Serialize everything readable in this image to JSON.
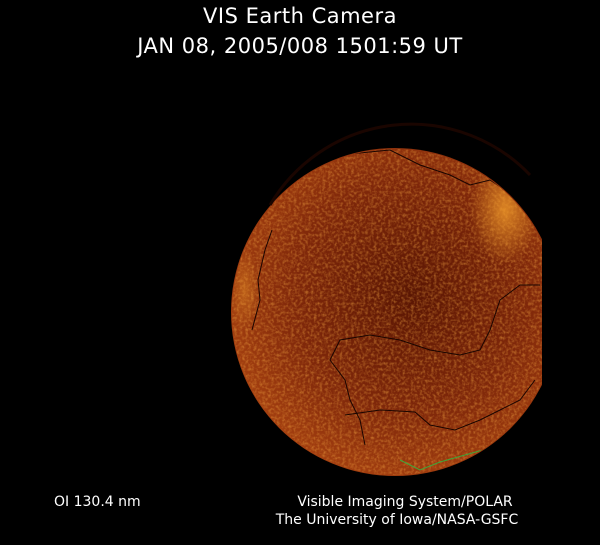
{
  "header": {
    "title": "VIS Earth Camera",
    "timestamp": "JAN 08, 2005/008 1501:59 UT"
  },
  "image": {
    "subject": "earth-disk-auroral-emission",
    "colors": {
      "background": "#000000",
      "disk_base": "#6b1e05",
      "disk_bright": "#e07a18",
      "coastline": "#1a0500",
      "coastline_south": "#3fa83a"
    }
  },
  "footer": {
    "wavelength": "OI  130.4 nm",
    "credit_line1": "Visible Imaging System/POLAR",
    "credit_line2": "The University of Iowa/NASA-GSFC"
  }
}
